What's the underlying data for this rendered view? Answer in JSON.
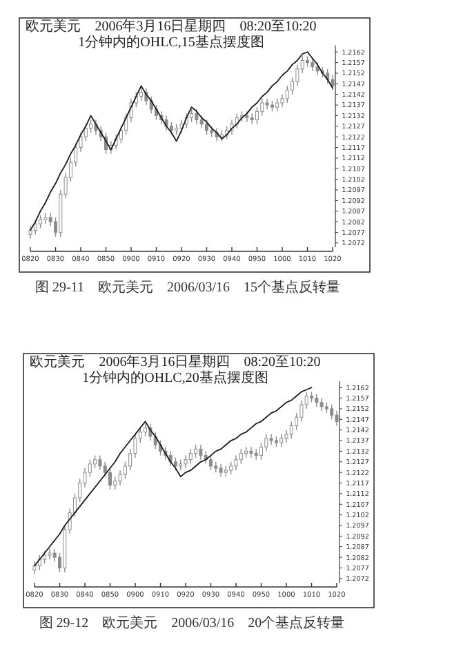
{
  "chart_data": [
    {
      "type": "candlestick",
      "title": "欧元美元　2006年3月16日星期四　08:20至10:20",
      "subtitle": "1分钟内的OHLC,15基点摆度图",
      "annotations": [
        "图 29-11　欧元美元　2006/03/16　15个基点反转量"
      ],
      "color": "#8c8c8c",
      "categories": [
        "0820",
        null,
        null,
        null,
        null,
        "0830",
        null,
        null,
        null,
        null,
        "0840",
        null,
        null,
        null,
        null,
        "0850",
        null,
        null,
        null,
        null,
        "0900",
        null,
        null,
        null,
        null,
        "0910",
        null,
        null,
        null,
        null,
        "0920",
        null,
        null,
        null,
        null,
        "0930",
        null,
        null,
        null,
        null,
        "0940",
        null,
        null,
        null,
        null,
        "0950",
        null,
        null,
        null,
        null,
        "1000",
        null,
        null,
        null,
        null,
        "1010",
        null,
        null,
        null,
        null,
        "1020"
      ],
      "ohlc": [
        [
          1.2076,
          1.208,
          1.2074,
          1.2078
        ],
        [
          1.2078,
          1.2083,
          1.2076,
          1.2081
        ],
        [
          1.2081,
          1.2085,
          1.2079,
          1.2083
        ],
        [
          1.2083,
          1.2086,
          1.2081,
          1.2084
        ],
        [
          1.2084,
          1.2086,
          1.208,
          1.2082
        ],
        [
          1.2082,
          1.2084,
          1.2075,
          1.2077
        ],
        [
          1.2077,
          1.2097,
          1.2075,
          1.2095
        ],
        [
          1.2095,
          1.2105,
          1.2093,
          1.2103
        ],
        [
          1.2103,
          1.2112,
          1.2101,
          1.211
        ],
        [
          1.211,
          1.2119,
          1.2108,
          1.2117
        ],
        [
          1.2117,
          1.2124,
          1.2115,
          1.2122
        ],
        [
          1.2122,
          1.2128,
          1.212,
          1.2126
        ],
        [
          1.2126,
          1.213,
          1.2124,
          1.2128
        ],
        [
          1.2128,
          1.213,
          1.2123,
          1.2125
        ],
        [
          1.2125,
          1.2127,
          1.212,
          1.2122
        ],
        [
          1.2122,
          1.2124,
          1.2114,
          1.2116
        ],
        [
          1.2116,
          1.212,
          1.2114,
          1.2118
        ],
        [
          1.2118,
          1.2123,
          1.2116,
          1.2121
        ],
        [
          1.2121,
          1.2127,
          1.2119,
          1.2125
        ],
        [
          1.2125,
          1.2133,
          1.2123,
          1.2131
        ],
        [
          1.2131,
          1.214,
          1.2129,
          1.2138
        ],
        [
          1.2138,
          1.2143,
          1.2136,
          1.2141
        ],
        [
          1.2141,
          1.2145,
          1.2139,
          1.2143
        ],
        [
          1.2143,
          1.2145,
          1.2137,
          1.2139
        ],
        [
          1.2139,
          1.2141,
          1.2133,
          1.2135
        ],
        [
          1.2135,
          1.2137,
          1.213,
          1.2132
        ],
        [
          1.2132,
          1.2134,
          1.2128,
          1.213
        ],
        [
          1.213,
          1.2132,
          1.2125,
          1.2127
        ],
        [
          1.2127,
          1.2129,
          1.2123,
          1.2125
        ],
        [
          1.2125,
          1.2128,
          1.2123,
          1.2126
        ],
        [
          1.2126,
          1.213,
          1.2124,
          1.2128
        ],
        [
          1.2128,
          1.2133,
          1.2126,
          1.2131
        ],
        [
          1.2131,
          1.2135,
          1.2129,
          1.2133
        ],
        [
          1.2133,
          1.2135,
          1.2128,
          1.213
        ],
        [
          1.213,
          1.2132,
          1.2126,
          1.2128
        ],
        [
          1.2128,
          1.213,
          1.2123,
          1.2125
        ],
        [
          1.2125,
          1.2127,
          1.2122,
          1.2124
        ],
        [
          1.2124,
          1.2126,
          1.212,
          1.2122
        ],
        [
          1.2122,
          1.2125,
          1.212,
          1.2123
        ],
        [
          1.2123,
          1.2127,
          1.2121,
          1.2125
        ],
        [
          1.2125,
          1.213,
          1.2123,
          1.2128
        ],
        [
          1.2128,
          1.2133,
          1.2126,
          1.2131
        ],
        [
          1.2131,
          1.2134,
          1.2129,
          1.2132
        ],
        [
          1.2132,
          1.2134,
          1.2129,
          1.2131
        ],
        [
          1.2131,
          1.2133,
          1.2128,
          1.213
        ],
        [
          1.213,
          1.2136,
          1.2128,
          1.2134
        ],
        [
          1.2134,
          1.214,
          1.2132,
          1.2138
        ],
        [
          1.2138,
          1.214,
          1.2135,
          1.2137
        ],
        [
          1.2137,
          1.2139,
          1.2134,
          1.2136
        ],
        [
          1.2136,
          1.214,
          1.2134,
          1.2138
        ],
        [
          1.2138,
          1.2142,
          1.2136,
          1.214
        ],
        [
          1.214,
          1.2146,
          1.2138,
          1.2144
        ],
        [
          1.2144,
          1.215,
          1.2142,
          1.2148
        ],
        [
          1.2148,
          1.2156,
          1.2146,
          1.2154
        ],
        [
          1.2154,
          1.216,
          1.2152,
          1.2158
        ],
        [
          1.2158,
          1.216,
          1.2155,
          1.2157
        ],
        [
          1.2157,
          1.2159,
          1.2153,
          1.2155
        ],
        [
          1.2155,
          1.2157,
          1.2151,
          1.2153
        ],
        [
          1.2153,
          1.2155,
          1.215,
          1.2152
        ],
        [
          1.2152,
          1.2154,
          1.2147,
          1.2149
        ],
        [
          1.2149,
          1.2151,
          1.2144,
          1.2146
        ]
      ],
      "series": [
        {
          "type": "line",
          "color": "#1a1a1a",
          "values": [
            1.2078,
            1.2082,
            1.2087,
            1.2091,
            1.2096,
            1.21,
            1.2105,
            1.2109,
            1.2114,
            1.2118,
            1.2123,
            1.2127,
            1.2132,
            1.2128,
            1.2124,
            1.212,
            1.2116,
            1.2121,
            1.2126,
            1.2131,
            1.2136,
            1.2141,
            1.2146,
            1.2142,
            1.2139,
            1.2135,
            1.2131,
            1.2127,
            1.2124,
            1.212,
            1.2125,
            1.2131,
            1.2136,
            1.2134,
            1.2131,
            1.2129,
            1.2126,
            1.2124,
            1.2121,
            1.2123,
            1.2126,
            1.2128,
            1.2131,
            1.2133,
            1.2136,
            1.2138,
            1.2141,
            1.2143,
            1.2146,
            1.2148,
            1.2151,
            1.2153,
            1.2156,
            1.2158,
            1.2161,
            1.2162,
            1.2159,
            1.2156,
            1.2152,
            1.2149,
            1.2145
          ]
        }
      ],
      "ylim": [
        1.207,
        1.2165
      ],
      "yticks": [
        1.2072,
        1.2077,
        1.2082,
        1.2087,
        1.2092,
        1.2097,
        1.2102,
        1.2107,
        1.2112,
        1.2117,
        1.2122,
        1.2127,
        1.2132,
        1.2137,
        1.2142,
        1.2147,
        1.2152,
        1.2157,
        1.2162
      ]
    },
    {
      "type": "candlestick",
      "title": "欧元美元　2006年3月16日星期四　08:20至10:20",
      "subtitle": "1分钟内的OHLC,20基点摆度图",
      "annotations": [
        "图 29-12　欧元美元　2006/03/16　20个基点反转量"
      ],
      "color": "#8c8c8c",
      "categories": [
        "0820",
        null,
        null,
        null,
        null,
        "0830",
        null,
        null,
        null,
        null,
        "0840",
        null,
        null,
        null,
        null,
        "0850",
        null,
        null,
        null,
        null,
        "0900",
        null,
        null,
        null,
        null,
        "0910",
        null,
        null,
        null,
        null,
        "0920",
        null,
        null,
        null,
        null,
        "0930",
        null,
        null,
        null,
        null,
        "0940",
        null,
        null,
        null,
        null,
        "0950",
        null,
        null,
        null,
        null,
        "1000",
        null,
        null,
        null,
        null,
        "1010",
        null,
        null,
        null,
        null,
        "1020"
      ],
      "ohlc": [
        [
          1.2076,
          1.208,
          1.2074,
          1.2078
        ],
        [
          1.2078,
          1.2083,
          1.2076,
          1.2081
        ],
        [
          1.2081,
          1.2085,
          1.2079,
          1.2083
        ],
        [
          1.2083,
          1.2086,
          1.2081,
          1.2084
        ],
        [
          1.2084,
          1.2086,
          1.208,
          1.2082
        ],
        [
          1.2082,
          1.2084,
          1.2075,
          1.2077
        ],
        [
          1.2077,
          1.2097,
          1.2075,
          1.2095
        ],
        [
          1.2095,
          1.2105,
          1.2093,
          1.2103
        ],
        [
          1.2103,
          1.2112,
          1.2101,
          1.211
        ],
        [
          1.211,
          1.2119,
          1.2108,
          1.2117
        ],
        [
          1.2117,
          1.2124,
          1.2115,
          1.2122
        ],
        [
          1.2122,
          1.2128,
          1.212,
          1.2126
        ],
        [
          1.2126,
          1.213,
          1.2124,
          1.2128
        ],
        [
          1.2128,
          1.213,
          1.2123,
          1.2125
        ],
        [
          1.2125,
          1.2127,
          1.212,
          1.2122
        ],
        [
          1.2122,
          1.2124,
          1.2114,
          1.2116
        ],
        [
          1.2116,
          1.212,
          1.2114,
          1.2118
        ],
        [
          1.2118,
          1.2123,
          1.2116,
          1.2121
        ],
        [
          1.2121,
          1.2127,
          1.2119,
          1.2125
        ],
        [
          1.2125,
          1.2133,
          1.2123,
          1.2131
        ],
        [
          1.2131,
          1.214,
          1.2129,
          1.2138
        ],
        [
          1.2138,
          1.2143,
          1.2136,
          1.2141
        ],
        [
          1.2141,
          1.2145,
          1.2139,
          1.2143
        ],
        [
          1.2143,
          1.2145,
          1.2137,
          1.2139
        ],
        [
          1.2139,
          1.2141,
          1.2133,
          1.2135
        ],
        [
          1.2135,
          1.2137,
          1.213,
          1.2132
        ],
        [
          1.2132,
          1.2134,
          1.2128,
          1.213
        ],
        [
          1.213,
          1.2132,
          1.2125,
          1.2127
        ],
        [
          1.2127,
          1.2129,
          1.2123,
          1.2125
        ],
        [
          1.2125,
          1.2128,
          1.2123,
          1.2126
        ],
        [
          1.2126,
          1.213,
          1.2124,
          1.2128
        ],
        [
          1.2128,
          1.2133,
          1.2126,
          1.2131
        ],
        [
          1.2131,
          1.2135,
          1.2129,
          1.2133
        ],
        [
          1.2133,
          1.2135,
          1.2128,
          1.213
        ],
        [
          1.213,
          1.2132,
          1.2126,
          1.2128
        ],
        [
          1.2128,
          1.213,
          1.2123,
          1.2125
        ],
        [
          1.2125,
          1.2127,
          1.2122,
          1.2124
        ],
        [
          1.2124,
          1.2126,
          1.212,
          1.2122
        ],
        [
          1.2122,
          1.2125,
          1.212,
          1.2123
        ],
        [
          1.2123,
          1.2127,
          1.2121,
          1.2125
        ],
        [
          1.2125,
          1.213,
          1.2123,
          1.2128
        ],
        [
          1.2128,
          1.2133,
          1.2126,
          1.2131
        ],
        [
          1.2131,
          1.2134,
          1.2129,
          1.2132
        ],
        [
          1.2132,
          1.2134,
          1.2129,
          1.2131
        ],
        [
          1.2131,
          1.2133,
          1.2128,
          1.213
        ],
        [
          1.213,
          1.2136,
          1.2128,
          1.2134
        ],
        [
          1.2134,
          1.214,
          1.2132,
          1.2138
        ],
        [
          1.2138,
          1.214,
          1.2135,
          1.2137
        ],
        [
          1.2137,
          1.2139,
          1.2134,
          1.2136
        ],
        [
          1.2136,
          1.214,
          1.2134,
          1.2138
        ],
        [
          1.2138,
          1.2142,
          1.2136,
          1.214
        ],
        [
          1.214,
          1.2146,
          1.2138,
          1.2144
        ],
        [
          1.2144,
          1.215,
          1.2142,
          1.2148
        ],
        [
          1.2148,
          1.2156,
          1.2146,
          1.2154
        ],
        [
          1.2154,
          1.216,
          1.2152,
          1.2158
        ],
        [
          1.2158,
          1.216,
          1.2155,
          1.2157
        ],
        [
          1.2157,
          1.2159,
          1.2153,
          1.2155
        ],
        [
          1.2155,
          1.2157,
          1.2151,
          1.2153
        ],
        [
          1.2153,
          1.2155,
          1.215,
          1.2152
        ],
        [
          1.2152,
          1.2154,
          1.2147,
          1.2149
        ],
        [
          1.2149,
          1.2151,
          1.2144,
          1.2146
        ]
      ],
      "series": [
        {
          "type": "line",
          "color": "#1a1a1a",
          "values": [
            1.2078,
            1.2081,
            1.2084,
            1.2087,
            1.209,
            1.2093,
            1.2097,
            1.21,
            1.2103,
            1.2106,
            1.2109,
            1.2112,
            1.2115,
            1.2118,
            1.2121,
            1.2124,
            1.2127,
            1.2131,
            1.2134,
            1.2137,
            1.214,
            1.2143,
            1.2146,
            1.2142,
            1.2139,
            1.2135,
            1.2131,
            1.2127,
            1.2124,
            1.212,
            1.2122,
            1.2123,
            1.2125,
            1.2127,
            1.2128,
            1.213,
            1.2132,
            1.2133,
            1.2135,
            1.2137,
            1.2138,
            1.214,
            1.2141,
            1.2143,
            1.2145,
            1.2146,
            1.2148,
            1.215,
            1.2151,
            1.2153,
            1.2155,
            1.2156,
            1.2158,
            1.216,
            1.2161,
            1.2162,
            null,
            null,
            null,
            null,
            null
          ]
        }
      ],
      "ylim": [
        1.207,
        1.2165
      ],
      "yticks": [
        1.2072,
        1.2077,
        1.2082,
        1.2087,
        1.2092,
        1.2097,
        1.2102,
        1.2107,
        1.2112,
        1.2117,
        1.2122,
        1.2127,
        1.2132,
        1.2137,
        1.2142,
        1.2147,
        1.2152,
        1.2157,
        1.2162
      ]
    }
  ]
}
